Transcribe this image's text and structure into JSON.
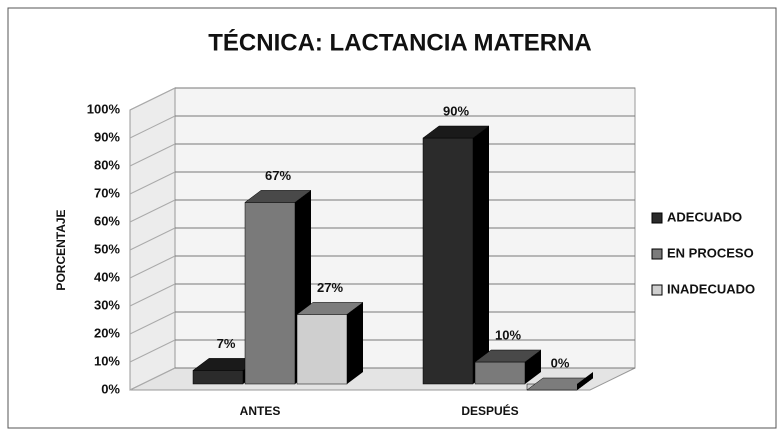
{
  "chart_data": {
    "type": "bar3d",
    "title": "TÉCNICA:  LACTANCIA MATERNA",
    "ylabel": "PORCENTAJE",
    "categories": [
      "ANTES",
      "DESPUÉS"
    ],
    "series": [
      {
        "name": "ADECUADO",
        "color": "#2b2b2b",
        "values": [
          7,
          90
        ],
        "value_labels": [
          "7%",
          "90%"
        ]
      },
      {
        "name": "EN PROCESO",
        "color": "#7a7a7a",
        "values": [
          67,
          10
        ],
        "value_labels": [
          "67%",
          "10%"
        ]
      },
      {
        "name": "INADECUADO",
        "color": "#cfcfcf",
        "values": [
          27,
          0
        ],
        "value_labels": [
          "27%",
          "0%"
        ]
      }
    ],
    "ylim": [
      0,
      100
    ],
    "yticks": [
      {
        "value": 0,
        "label": "0%"
      },
      {
        "value": 10,
        "label": "10%"
      },
      {
        "value": 20,
        "label": "20%"
      },
      {
        "value": 30,
        "label": "30%"
      },
      {
        "value": 40,
        "label": "40%"
      },
      {
        "value": 50,
        "label": "50%"
      },
      {
        "value": 60,
        "label": "60%"
      },
      {
        "value": 70,
        "label": "70%"
      },
      {
        "value": 80,
        "label": "80%"
      },
      {
        "value": 90,
        "label": "90%"
      },
      {
        "value": 100,
        "label": "100%"
      }
    ],
    "grid": true,
    "legend": "right"
  }
}
